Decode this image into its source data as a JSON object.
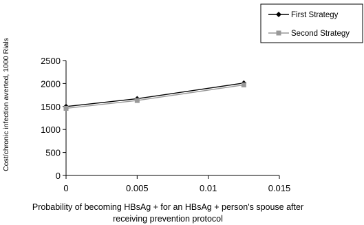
{
  "chart_data": {
    "type": "line",
    "title": "",
    "xlabel_lines": [
      "Probability of becoming HBsAg + for an HBsAg + person's spouse after",
      "receiving prevention protocol"
    ],
    "ylabel": "Cost/chronic infection averted, 1000 Rials",
    "xlim": [
      0,
      0.015
    ],
    "ylim": [
      0,
      2500
    ],
    "xticks": [
      0,
      0.005,
      0.01,
      0.015
    ],
    "xtick_labels": [
      "0",
      "0.005",
      "0.01",
      "0.015"
    ],
    "yticks": [
      0,
      500,
      1000,
      1500,
      2000,
      2500
    ],
    "ytick_labels": [
      "0",
      "500",
      "1000",
      "1500",
      "2000",
      "2500"
    ],
    "grid": false,
    "legend_position": "top-right",
    "series": [
      {
        "name": "First Strategy",
        "color": "#000000",
        "marker": "diamond",
        "x": [
          0,
          0.005,
          0.0125
        ],
        "y": [
          1500,
          1670,
          2010
        ]
      },
      {
        "name": "Second Strategy",
        "color": "#999999",
        "marker": "square",
        "x": [
          0,
          0.005,
          0.0125
        ],
        "y": [
          1460,
          1630,
          1970
        ]
      }
    ]
  }
}
